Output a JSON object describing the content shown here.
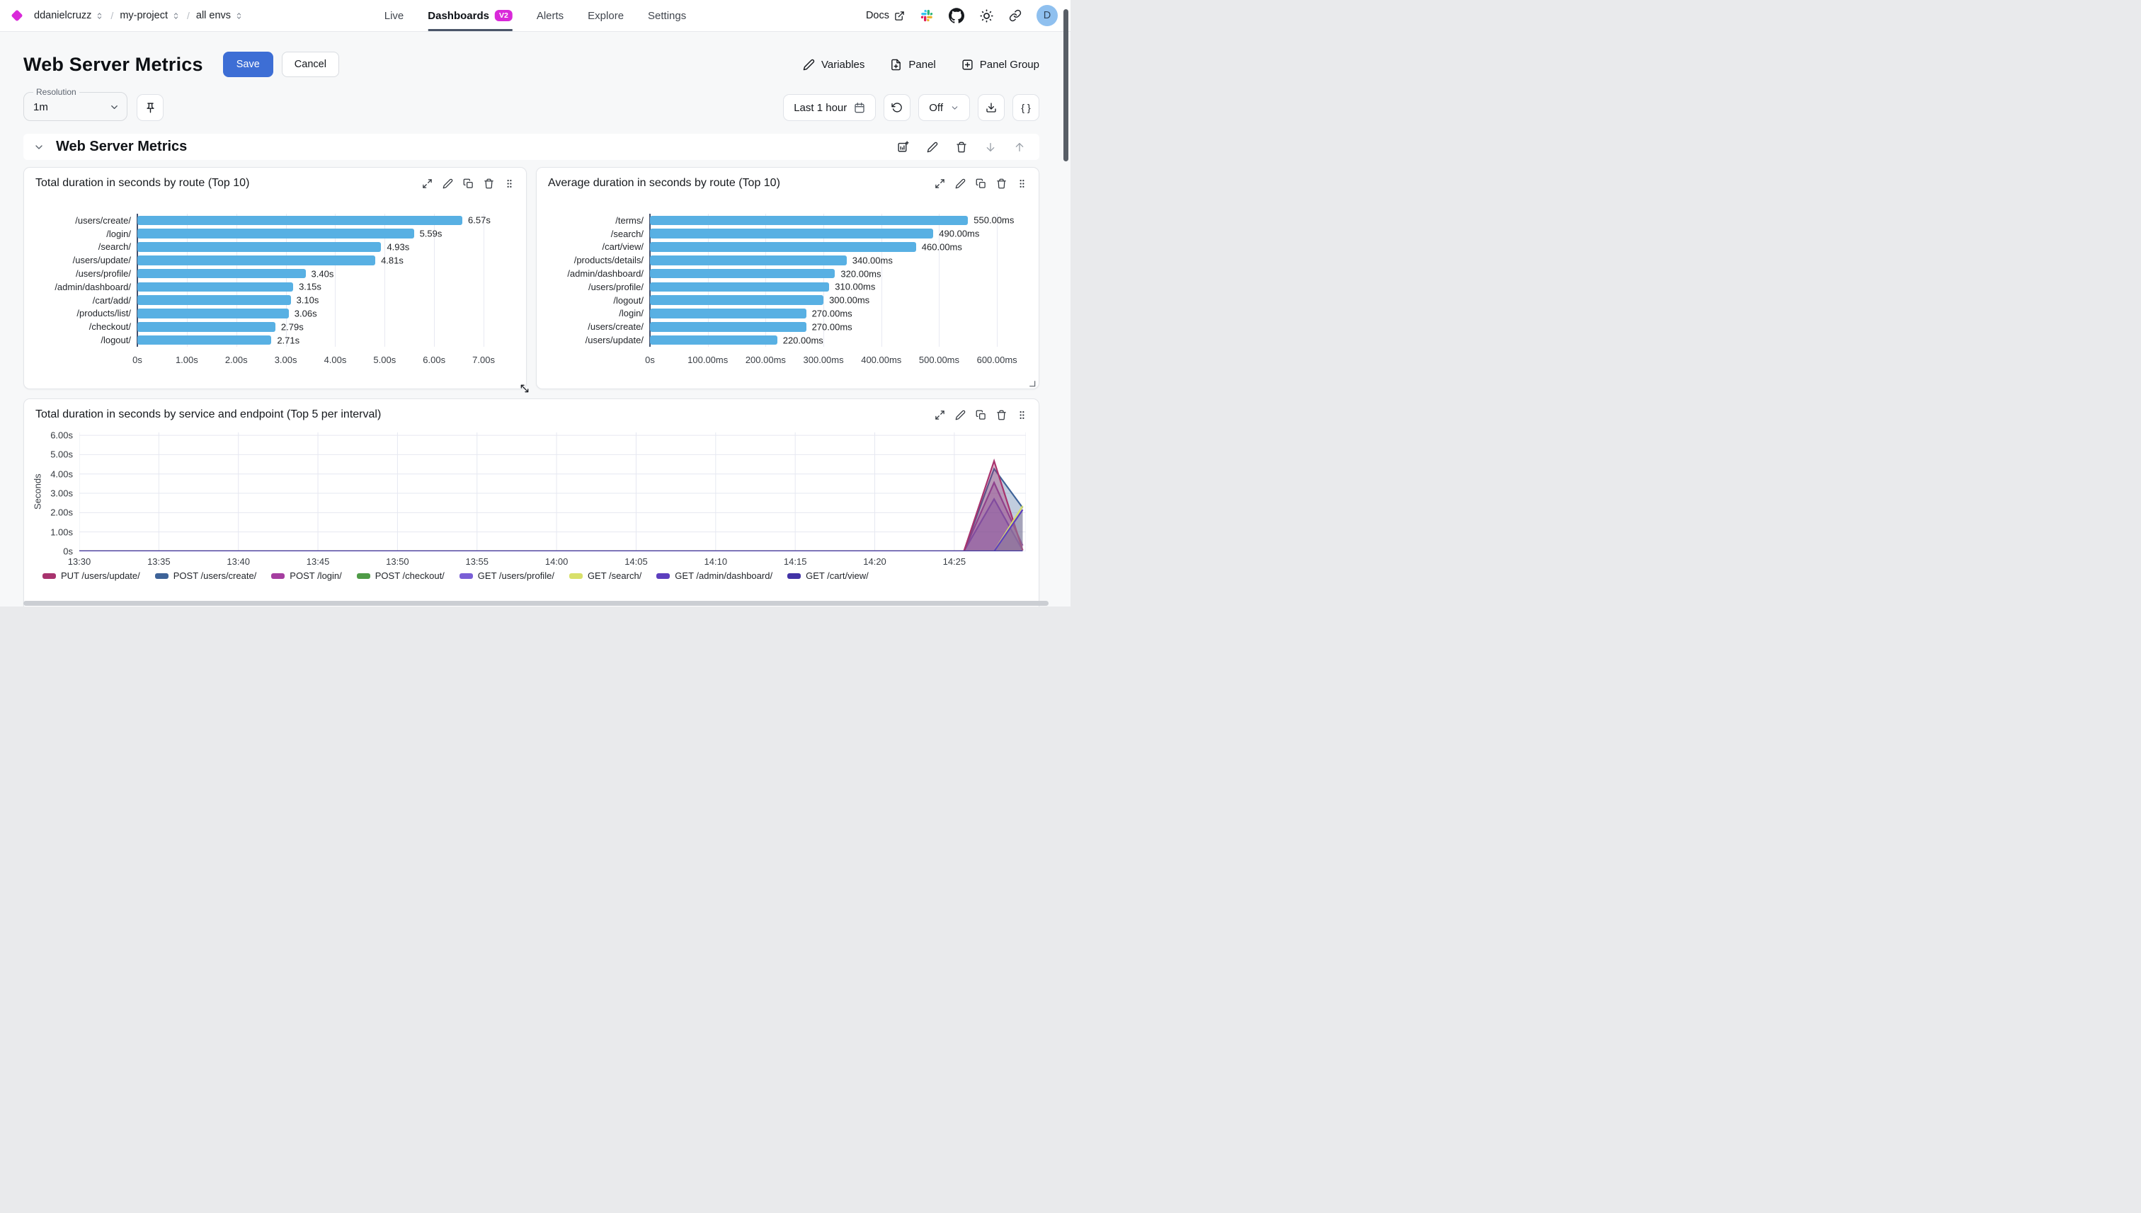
{
  "colors": {
    "accent": "#d929d9",
    "primary_button": "#3d6ed5",
    "bar": "#58b0e3",
    "avatar_bg": "#8fc0ef",
    "active_tab_underline": "#4b5669"
  },
  "nav": {
    "breadcrumbs": [
      {
        "label": "ddanielcruzz"
      },
      {
        "label": "my-project"
      },
      {
        "label": "all envs"
      }
    ],
    "tabs": [
      {
        "label": "Live"
      },
      {
        "label": "Dashboards",
        "badge": "V2",
        "active": true
      },
      {
        "label": "Alerts"
      },
      {
        "label": "Explore"
      },
      {
        "label": "Settings"
      }
    ],
    "docs_label": "Docs",
    "avatar_initial": "D"
  },
  "header": {
    "title": "Web Server Metrics",
    "save_label": "Save",
    "cancel_label": "Cancel",
    "variables_label": "Variables",
    "panel_label": "Panel",
    "panel_group_label": "Panel Group"
  },
  "controls": {
    "resolution_label": "Resolution",
    "resolution_value": "1m",
    "time_range_label": "Last 1 hour",
    "refresh_mode_label": "Off",
    "query_button_label": "{ }"
  },
  "section": {
    "title": "Web Server Metrics"
  },
  "chart_data": [
    {
      "type": "bar",
      "orientation": "horizontal",
      "title": "Total duration in seconds by route (Top 10)",
      "categories": [
        "/users/create/",
        "/login/",
        "/search/",
        "/users/update/",
        "/users/profile/",
        "/admin/dashboard/",
        "/cart/add/",
        "/products/list/",
        "/checkout/",
        "/logout/"
      ],
      "values": [
        6.57,
        5.59,
        4.93,
        4.81,
        3.4,
        3.15,
        3.1,
        3.06,
        2.79,
        2.71
      ],
      "value_labels": [
        "6.57s",
        "5.59s",
        "4.93s",
        "4.81s",
        "3.40s",
        "3.15s",
        "3.10s",
        "3.06s",
        "2.79s",
        "2.71s"
      ],
      "xtick_values": [
        0,
        1,
        2,
        3,
        4,
        5,
        6,
        7
      ],
      "xtick_labels": [
        "0s",
        "1.00s",
        "2.00s",
        "3.00s",
        "4.00s",
        "5.00s",
        "6.00s",
        "7.00s"
      ],
      "xmax": 7.6,
      "grid": true
    },
    {
      "type": "bar",
      "orientation": "horizontal",
      "title": "Average duration in seconds by route (Top 10)",
      "categories": [
        "/terms/",
        "/search/",
        "/cart/view/",
        "/products/details/",
        "/admin/dashboard/",
        "/users/profile/",
        "/logout/",
        "/login/",
        "/users/create/",
        "/users/update/"
      ],
      "values": [
        550,
        490,
        460,
        340,
        320,
        310,
        300,
        270,
        270,
        220
      ],
      "value_labels": [
        "550.00ms",
        "490.00ms",
        "460.00ms",
        "340.00ms",
        "320.00ms",
        "310.00ms",
        "300.00ms",
        "270.00ms",
        "270.00ms",
        "220.00ms"
      ],
      "xtick_values": [
        0,
        100,
        200,
        300,
        400,
        500,
        600
      ],
      "xtick_labels": [
        "0s",
        "100.00ms",
        "200.00ms",
        "300.00ms",
        "400.00ms",
        "500.00ms",
        "600.00ms"
      ],
      "xmax": 650,
      "grid": true
    },
    {
      "type": "area",
      "title": "Total duration in seconds by service and endpoint (Top 5 per interval)",
      "ylabel": "Seconds",
      "ytick_values": [
        0,
        1,
        2,
        3,
        4,
        5,
        6
      ],
      "ytick_labels": [
        "0s",
        "1.00s",
        "2.00s",
        "3.00s",
        "4.00s",
        "5.00s",
        "6.00s"
      ],
      "ymax": 6.15,
      "xtick_minutes": [
        0,
        5,
        10,
        15,
        20,
        25,
        30,
        35,
        40,
        45,
        50,
        55
      ],
      "xtick_labels": [
        "13:30",
        "13:35",
        "13:40",
        "13:45",
        "13:50",
        "13:55",
        "14:00",
        "14:05",
        "14:10",
        "14:15",
        "14:20",
        "14:25"
      ],
      "xmax_minutes": 59.5,
      "legend_position": "bottom",
      "series": [
        {
          "name": "GET /users/profile/",
          "color": "#7a5fd6",
          "points": [
            [
              0,
              0
            ],
            [
              55.6,
              0
            ],
            [
              57.5,
              2.7
            ],
            [
              59.3,
              0.05
            ]
          ]
        },
        {
          "name": "POST /login/",
          "color": "#a53ea0",
          "points": [
            [
              0,
              0
            ],
            [
              55.6,
              0
            ],
            [
              57.5,
              3.55
            ],
            [
              59.3,
              0.3
            ]
          ]
        },
        {
          "name": "POST /users/create/",
          "color": "#3e6398",
          "points": [
            [
              0,
              0
            ],
            [
              55.6,
              0
            ],
            [
              57.5,
              4.27
            ],
            [
              59.3,
              2.25
            ]
          ]
        },
        {
          "name": "PUT /users/update/",
          "color": "#a8336e",
          "points": [
            [
              0,
              0
            ],
            [
              55.6,
              0
            ],
            [
              57.5,
              4.67
            ],
            [
              59.3,
              0.05
            ]
          ]
        },
        {
          "name": "GET /search/",
          "color": "#d8e06a",
          "points": [
            [
              0,
              0
            ],
            [
              57.5,
              0
            ],
            [
              59.3,
              2.35
            ]
          ]
        },
        {
          "name": "GET /admin/dashboard/",
          "color": "#5d3fbe",
          "points": [
            [
              0,
              0
            ],
            [
              57.5,
              0
            ],
            [
              59.3,
              2.15
            ]
          ]
        },
        {
          "name": "POST /checkout/",
          "color": "#4f9b47",
          "points": [
            [
              0,
              0
            ],
            [
              59.3,
              0
            ]
          ]
        },
        {
          "name": "GET /cart/view/",
          "color": "#4233a6",
          "points": [
            [
              0,
              0
            ],
            [
              59.3,
              0
            ]
          ]
        }
      ],
      "legend_order": [
        "PUT /users/update/",
        "POST /users/create/",
        "POST /login/",
        "POST /checkout/",
        "GET /users/profile/",
        "GET /search/",
        "GET /admin/dashboard/",
        "GET /cart/view/"
      ]
    }
  ]
}
